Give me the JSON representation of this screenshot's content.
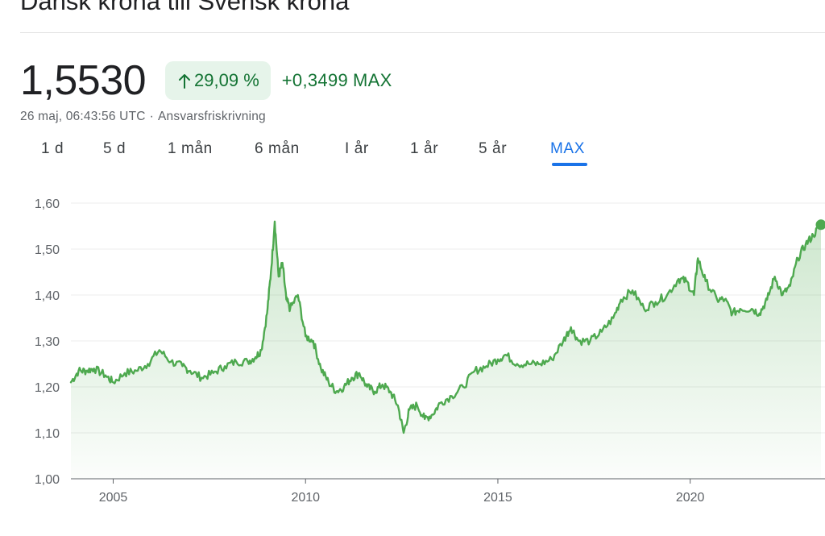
{
  "header": {
    "title": "Dansk krona till Svensk krona"
  },
  "quote": {
    "price": "1,5530",
    "percent_change": "29,09 %",
    "absolute_change": "+0,3499",
    "period": "MAX",
    "timestamp": "26 maj, 06:43:56 UTC",
    "separator": "·",
    "disclaimer": "Ansvarsfriskrivning"
  },
  "colors": {
    "positive": "#137333",
    "positive_bg": "#e6f4ea",
    "line": "#4ea94f",
    "accent": "#1a73e8"
  },
  "icons": {
    "change_direction": "arrow-up-icon"
  },
  "range_tabs": [
    {
      "label": "1 d"
    },
    {
      "label": "5 d"
    },
    {
      "label": "1 mån"
    },
    {
      "label": "6 mån"
    },
    {
      "label": "I år"
    },
    {
      "label": "1 år"
    },
    {
      "label": "5 år"
    },
    {
      "label": "MAX",
      "selected": true
    }
  ],
  "chart_data": {
    "type": "area",
    "title": "",
    "xlabel": "",
    "ylabel": "",
    "x_ticks": [
      "2005",
      "2010",
      "2015",
      "2020"
    ],
    "y_ticks": [
      "1,00",
      "1,10",
      "1,20",
      "1,30",
      "1,40",
      "1,50",
      "1,60"
    ],
    "ylim": [
      1.0,
      1.6
    ],
    "xlim": [
      2003.9,
      2023.4
    ],
    "grid": true,
    "series": [
      {
        "x": [
          2003.9,
          2004.1,
          2004.3,
          2004.5,
          2004.8,
          2005.0,
          2005.3,
          2005.6,
          2005.9,
          2006.2,
          2006.5,
          2006.8,
          2007.0,
          2007.3,
          2007.6,
          2007.9,
          2008.2,
          2008.5,
          2008.7,
          2008.85,
          2009.0,
          2009.1,
          2009.2,
          2009.3,
          2009.4,
          2009.5,
          2009.6,
          2009.8,
          2010.0,
          2010.2,
          2010.4,
          2010.6,
          2010.8,
          2011.0,
          2011.2,
          2011.4,
          2011.6,
          2011.8,
          2012.0,
          2012.2,
          2012.4,
          2012.55,
          2012.7,
          2012.9,
          2013.1,
          2013.3,
          2013.5,
          2013.8,
          2014.1,
          2014.4,
          2014.7,
          2015.0,
          2015.2,
          2015.5,
          2015.8,
          2016.1,
          2016.4,
          2016.7,
          2016.9,
          2017.1,
          2017.4,
          2017.7,
          2018.0,
          2018.2,
          2018.5,
          2018.8,
          2019.1,
          2019.4,
          2019.7,
          2019.9,
          2020.1,
          2020.2,
          2020.4,
          2020.7,
          2020.9,
          2021.1,
          2021.3,
          2021.6,
          2021.8,
          2022.0,
          2022.2,
          2022.4,
          2022.6,
          2022.8,
          2023.0,
          2023.2,
          2023.4
        ],
        "y": [
          1.21,
          1.235,
          1.235,
          1.24,
          1.225,
          1.21,
          1.23,
          1.235,
          1.25,
          1.28,
          1.255,
          1.245,
          1.235,
          1.22,
          1.23,
          1.245,
          1.255,
          1.255,
          1.265,
          1.28,
          1.36,
          1.45,
          1.56,
          1.44,
          1.47,
          1.39,
          1.37,
          1.4,
          1.31,
          1.3,
          1.24,
          1.21,
          1.19,
          1.2,
          1.22,
          1.23,
          1.2,
          1.19,
          1.205,
          1.19,
          1.16,
          1.1,
          1.15,
          1.16,
          1.13,
          1.14,
          1.165,
          1.18,
          1.2,
          1.235,
          1.245,
          1.26,
          1.27,
          1.25,
          1.25,
          1.25,
          1.26,
          1.3,
          1.33,
          1.3,
          1.3,
          1.32,
          1.35,
          1.39,
          1.41,
          1.37,
          1.385,
          1.4,
          1.435,
          1.43,
          1.4,
          1.48,
          1.43,
          1.39,
          1.39,
          1.36,
          1.37,
          1.37,
          1.36,
          1.39,
          1.44,
          1.4,
          1.42,
          1.48,
          1.51,
          1.53,
          1.553
        ]
      }
    ]
  }
}
